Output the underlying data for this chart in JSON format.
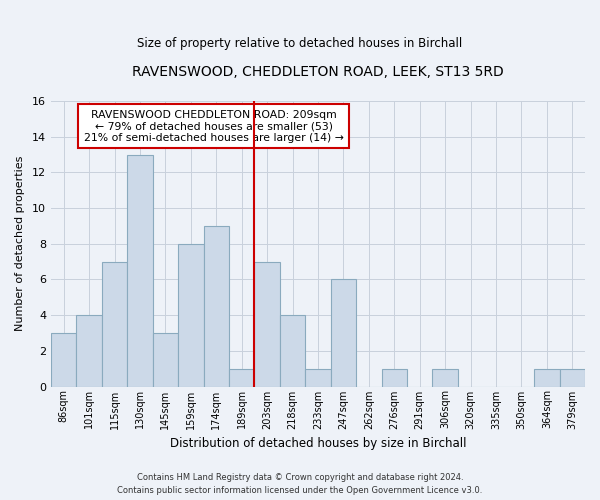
{
  "title": "RAVENSWOOD, CHEDDLETON ROAD, LEEK, ST13 5RD",
  "subtitle": "Size of property relative to detached houses in Birchall",
  "xlabel": "Distribution of detached houses by size in Birchall",
  "ylabel": "Number of detached properties",
  "bar_labels": [
    "86sqm",
    "101sqm",
    "115sqm",
    "130sqm",
    "145sqm",
    "159sqm",
    "174sqm",
    "189sqm",
    "203sqm",
    "218sqm",
    "233sqm",
    "247sqm",
    "262sqm",
    "276sqm",
    "291sqm",
    "306sqm",
    "320sqm",
    "335sqm",
    "350sqm",
    "364sqm",
    "379sqm"
  ],
  "bar_values": [
    3,
    4,
    7,
    13,
    3,
    8,
    9,
    1,
    7,
    4,
    1,
    6,
    0,
    1,
    0,
    1,
    0,
    0,
    0,
    1,
    1
  ],
  "bar_color": "#ccd9e8",
  "bar_edge_color": "#8aaabe",
  "vline_bar_index": 8,
  "vline_color": "#cc0000",
  "ylim": [
    0,
    16
  ],
  "yticks": [
    0,
    2,
    4,
    6,
    8,
    10,
    12,
    14,
    16
  ],
  "annotation_line1": "RAVENSWOOD CHEDDLETON ROAD: 209sqm",
  "annotation_line2": "← 79% of detached houses are smaller (53)",
  "annotation_line3": "21% of semi-detached houses are larger (14) →",
  "footer_line1": "Contains HM Land Registry data © Crown copyright and database right 2024.",
  "footer_line2": "Contains public sector information licensed under the Open Government Licence v3.0.",
  "bg_color": "#eef2f8",
  "plot_bg_color": "#eef2f8",
  "grid_color": "#c8d0dc"
}
